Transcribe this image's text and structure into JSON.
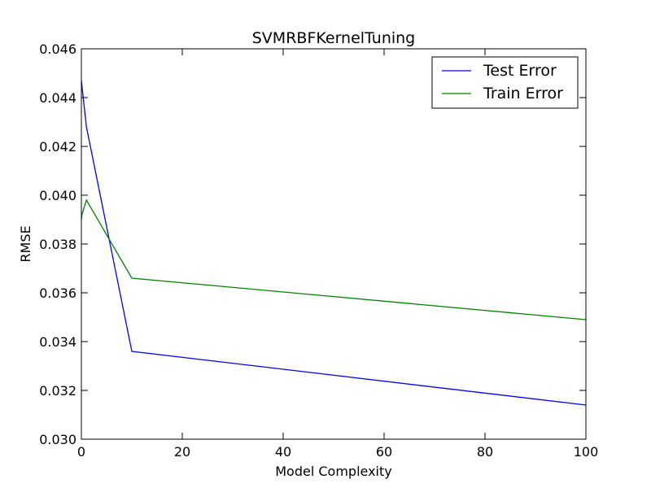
{
  "chart_data": {
    "type": "line",
    "title": "SVMRBFKernelTuning",
    "xlabel": "Model Complexity",
    "ylabel": "RMSE",
    "xlim": [
      0,
      100
    ],
    "ylim": [
      0.03,
      0.046
    ],
    "xticks": [
      0,
      20,
      40,
      60,
      80,
      100
    ],
    "xtick_labels": [
      "0",
      "20",
      "40",
      "60",
      "80",
      "100"
    ],
    "yticks": [
      0.03,
      0.032,
      0.034,
      0.036,
      0.038,
      0.04,
      0.042,
      0.044,
      0.046
    ],
    "ytick_labels": [
      "0.030",
      "0.032",
      "0.034",
      "0.036",
      "0.038",
      "0.040",
      "0.042",
      "0.044",
      "0.046"
    ],
    "grid": false,
    "legend_position": "top-right",
    "series": [
      {
        "name": "Test Error",
        "color": "#0000ff",
        "x": [
          0.01,
          0.1,
          1,
          10,
          100
        ],
        "y": [
          0.0447,
          0.0445,
          0.0428,
          0.0336,
          0.0314
        ]
      },
      {
        "name": "Train Error",
        "color": "#008000",
        "x": [
          0.01,
          0.1,
          1,
          10,
          100
        ],
        "y": [
          0.039,
          0.0392,
          0.0398,
          0.0366,
          0.0349
        ]
      }
    ]
  }
}
